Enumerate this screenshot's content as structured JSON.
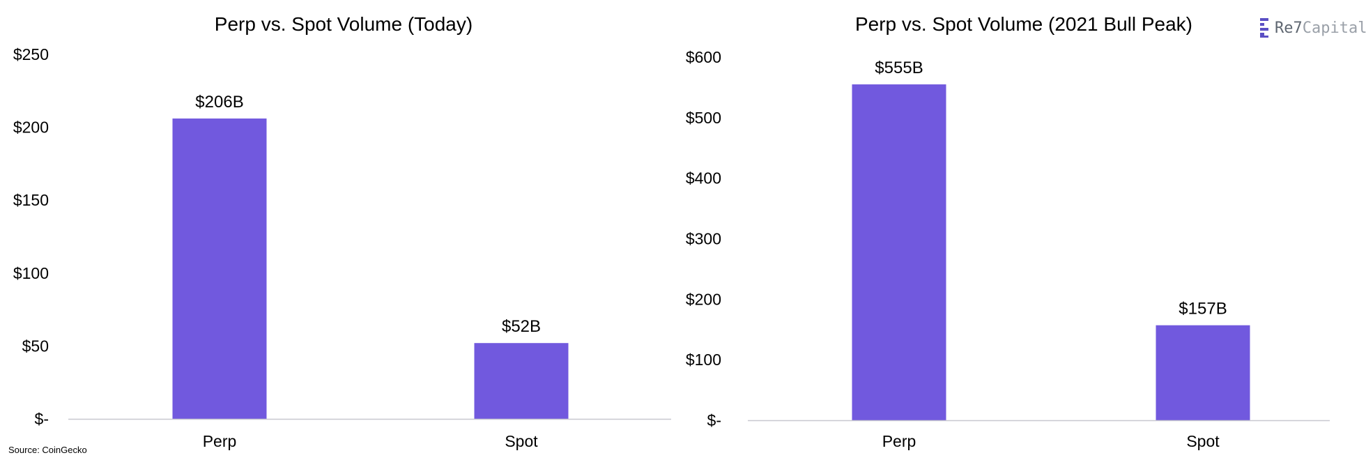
{
  "colors": {
    "bar": "#7159DE",
    "axis": "#c8c8d0",
    "text": "#000000"
  },
  "logo": {
    "icon": "re7-logo-icon",
    "name_a": "Re7",
    "name_b": "Capital"
  },
  "source": "Source: CoinGecko",
  "chart_data": [
    {
      "type": "bar",
      "title": "Perp vs. Spot Volume (Today)",
      "categories": [
        "Perp",
        "Spot"
      ],
      "values": [
        206,
        52
      ],
      "data_labels": [
        "$206B",
        "$52B"
      ],
      "ylim": [
        0,
        250
      ],
      "yticks": [
        0,
        50,
        100,
        150,
        200,
        250
      ],
      "ytick_labels": [
        "$-",
        "$50",
        "$100",
        "$150",
        "$200",
        "$250"
      ],
      "xlabel": "",
      "ylabel": "",
      "grid": false
    },
    {
      "type": "bar",
      "title": "Perp vs. Spot Volume (2021 Bull Peak)",
      "categories": [
        "Perp",
        "Spot"
      ],
      "values": [
        555,
        157
      ],
      "data_labels": [
        "$555B",
        "$157B"
      ],
      "ylim": [
        0,
        600
      ],
      "yticks": [
        0,
        100,
        200,
        300,
        400,
        500,
        600
      ],
      "ytick_labels": [
        "$-",
        "$100",
        "$200",
        "$300",
        "$400",
        "$500",
        "$600"
      ],
      "xlabel": "",
      "ylabel": "",
      "grid": false
    }
  ]
}
